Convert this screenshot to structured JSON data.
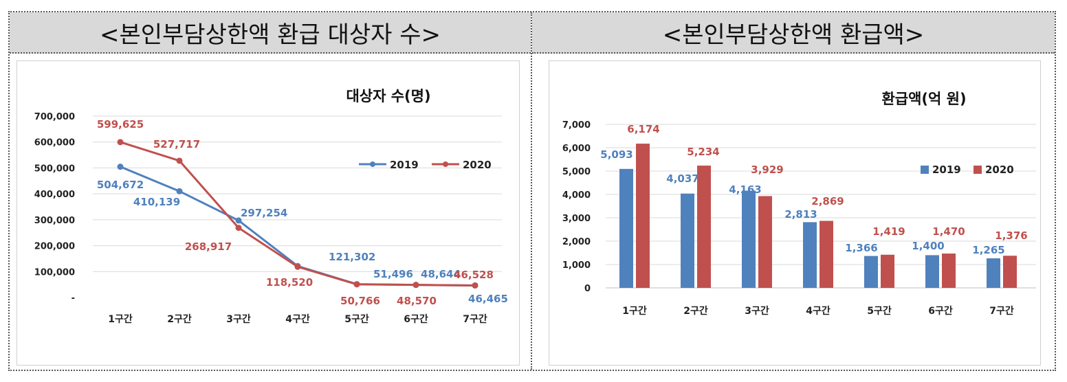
{
  "panels": {
    "left_title": "<본인부담상한액 환급 대상자 수>",
    "right_title": "<본인부담상한액 환급액>"
  },
  "colors": {
    "s2019": "#4f81bd",
    "s2020": "#c0504d",
    "grid": "#d9d9d9"
  },
  "chart_data": [
    {
      "type": "line",
      "title": "대상자 수(명)",
      "categories": [
        "1구간",
        "2구간",
        "3구간",
        "4구간",
        "5구간",
        "6구간",
        "7구간"
      ],
      "series": [
        {
          "name": "2019",
          "values": [
            504672,
            410139,
            297254,
            121302,
            51496,
            48644,
            46465
          ],
          "labels": [
            "504,672",
            "410,139",
            "297,254",
            "121,302",
            "51,496",
            "48,644",
            "46,465"
          ]
        },
        {
          "name": "2020",
          "values": [
            599625,
            527717,
            268917,
            118520,
            50766,
            48570,
            46528
          ],
          "labels": [
            "599,625",
            "527,717",
            "268,917",
            "118,520",
            "50,766",
            "48,570",
            "46,528"
          ]
        }
      ],
      "ylim": [
        0,
        700000
      ],
      "yticks": [
        "-",
        "100,000",
        "200,000",
        "300,000",
        "400,000",
        "500,000",
        "600,000",
        "700,000"
      ],
      "grid": true,
      "legend": "right"
    },
    {
      "type": "bar",
      "title": "환급액(억 원)",
      "categories": [
        "1구간",
        "2구간",
        "3구간",
        "4구간",
        "5구간",
        "6구간",
        "7구간"
      ],
      "series": [
        {
          "name": "2019",
          "values": [
            5093,
            4037,
            4163,
            2813,
            1366,
            1400,
            1265
          ],
          "labels": [
            "5,093",
            "4,037",
            "4,163",
            "2,813",
            "1,366",
            "1,400",
            "1,265"
          ]
        },
        {
          "name": "2020",
          "values": [
            6174,
            5234,
            3929,
            2869,
            1419,
            1470,
            1376
          ],
          "labels": [
            "6,174",
            "5,234",
            "3,929",
            "2,869",
            "1,419",
            "1,470",
            "1,376"
          ]
        }
      ],
      "ylim": [
        0,
        7000
      ],
      "yticks": [
        "0",
        "1,000",
        "2,000",
        "3,000",
        "4,000",
        "5,000",
        "6,000",
        "7,000"
      ],
      "grid": true,
      "legend": "right"
    }
  ]
}
